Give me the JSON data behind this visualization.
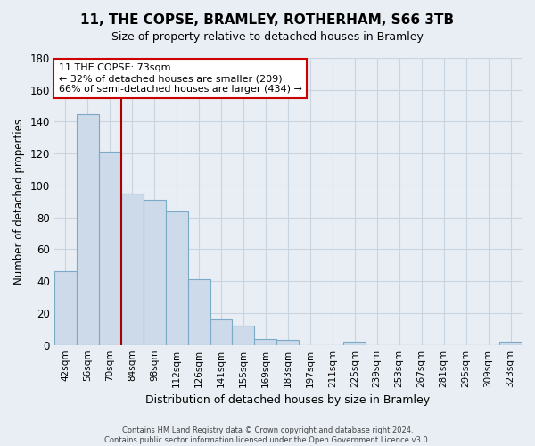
{
  "title": "11, THE COPSE, BRAMLEY, ROTHERHAM, S66 3TB",
  "subtitle": "Size of property relative to detached houses in Bramley",
  "xlabel": "Distribution of detached houses by size in Bramley",
  "ylabel": "Number of detached properties",
  "bar_labels": [
    "42sqm",
    "56sqm",
    "70sqm",
    "84sqm",
    "98sqm",
    "112sqm",
    "126sqm",
    "141sqm",
    "155sqm",
    "169sqm",
    "183sqm",
    "197sqm",
    "211sqm",
    "225sqm",
    "239sqm",
    "253sqm",
    "267sqm",
    "281sqm",
    "295sqm",
    "309sqm",
    "323sqm"
  ],
  "bar_values": [
    46,
    145,
    121,
    95,
    91,
    84,
    41,
    16,
    12,
    4,
    3,
    0,
    0,
    2,
    0,
    0,
    0,
    0,
    0,
    0,
    2
  ],
  "bar_color": "#ccdaea",
  "bar_edge_color": "#7aaac8",
  "vline_x": 2.5,
  "vline_color": "#aa0000",
  "ylim": [
    0,
    180
  ],
  "yticks": [
    0,
    20,
    40,
    60,
    80,
    100,
    120,
    140,
    160,
    180
  ],
  "annotation_title": "11 THE COPSE: 73sqm",
  "annotation_line1": "← 32% of detached houses are smaller (209)",
  "annotation_line2": "66% of semi-detached houses are larger (434) →",
  "annotation_box_color": "#ffffff",
  "annotation_box_edge": "#cc0000",
  "footer_line1": "Contains HM Land Registry data © Crown copyright and database right 2024.",
  "footer_line2": "Contains public sector information licensed under the Open Government Licence v3.0.",
  "background_color": "#e8eef4",
  "grid_color": "#c8d4e0",
  "title_fontsize": 11,
  "subtitle_fontsize": 9
}
